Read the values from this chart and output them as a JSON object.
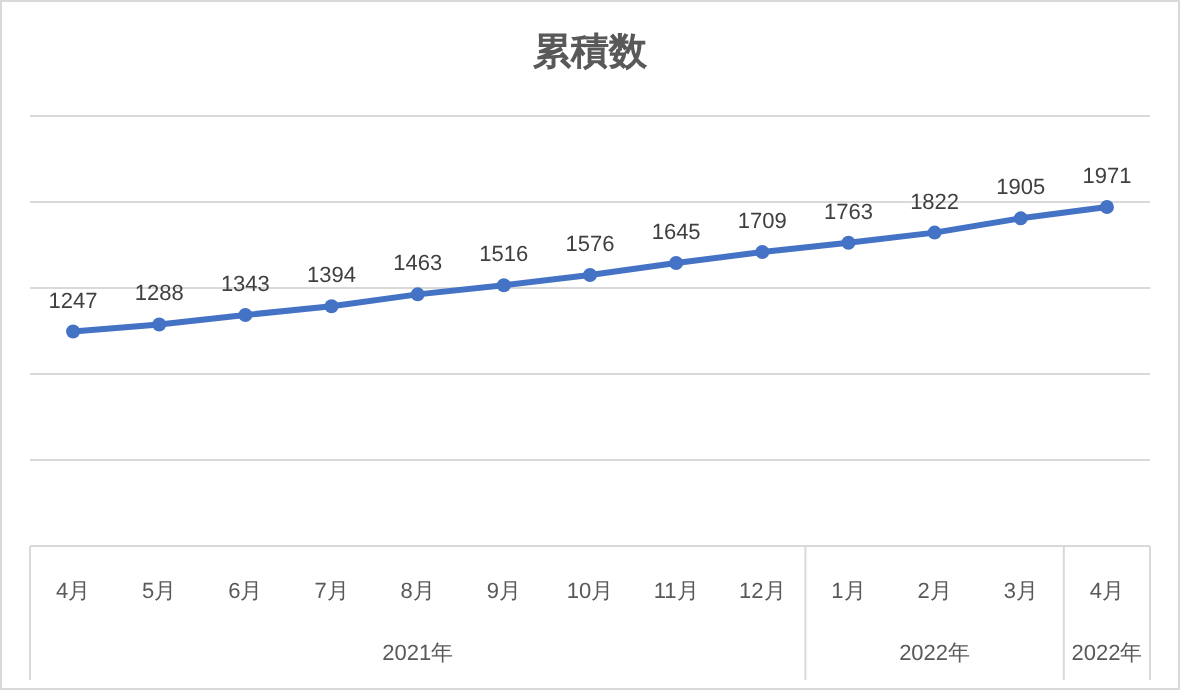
{
  "chart_data": {
    "type": "line",
    "title": "累積数",
    "categories": [
      "4月",
      "5月",
      "6月",
      "7月",
      "8月",
      "9月",
      "10月",
      "11月",
      "12月",
      "1月",
      "2月",
      "3月",
      "4月"
    ],
    "series": [
      {
        "color": "#4472c4",
        "values": [
          1247,
          1288,
          1343,
          1394,
          1463,
          1516,
          1576,
          1645,
          1709,
          1763,
          1822,
          1905,
          1971
        ]
      }
    ],
    "ylim": [
      0,
      2500
    ],
    "yticks": [
      {
        "value": 0,
        "label": null
      },
      {
        "value": 500,
        "label": null
      },
      {
        "value": 1000,
        "label": null
      },
      {
        "value": 1500,
        "label": null
      },
      {
        "value": 2000,
        "label": null
      },
      {
        "value": 2500,
        "label": null
      }
    ],
    "tick_labels": "x",
    "grid": "y",
    "marker": "circle",
    "data_labels": true,
    "annotations": [
      "2021年",
      "2022年",
      "2022年"
    ]
  }
}
